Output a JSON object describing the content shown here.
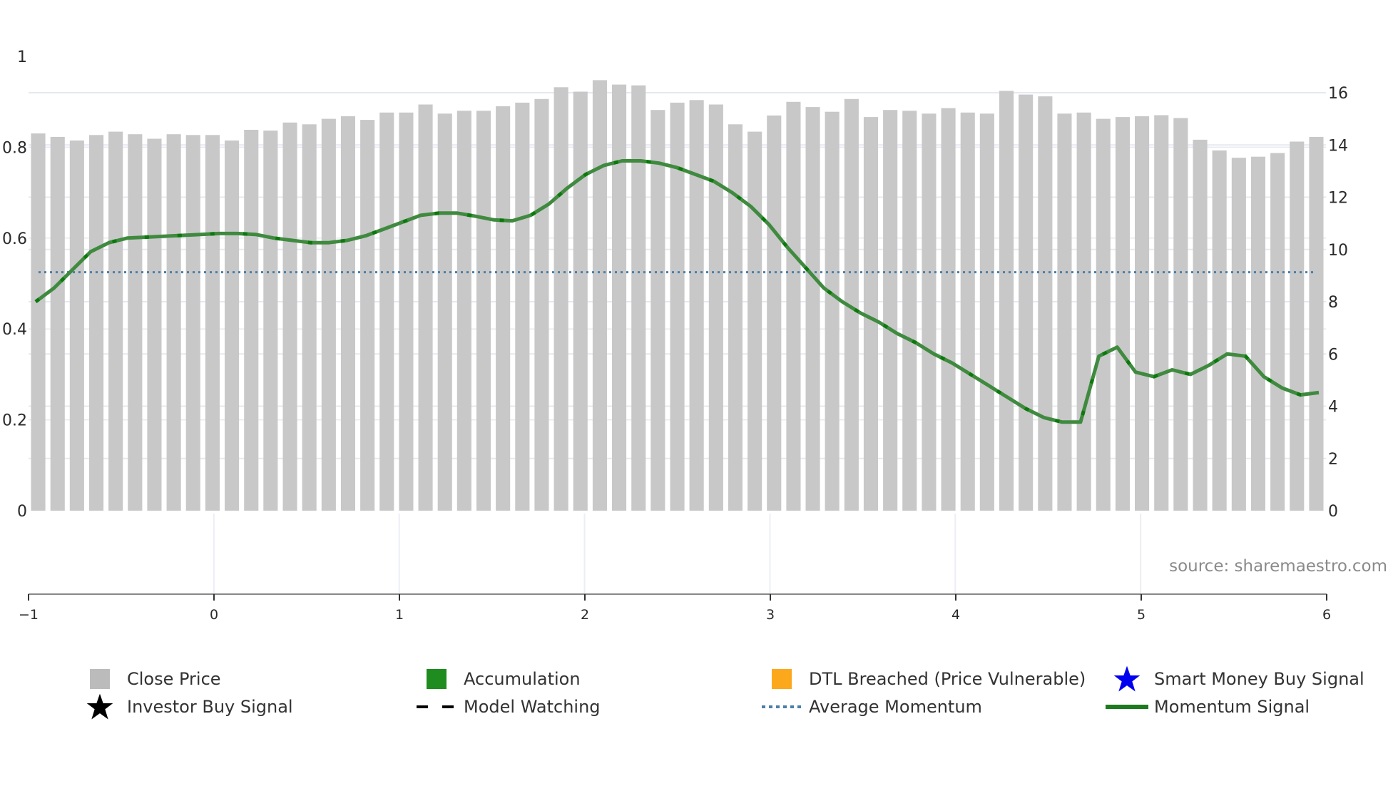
{
  "chart_data": {
    "type": "bar+line",
    "title": "",
    "source": "source: sharemaestro.com",
    "x_axis": {
      "ticks": [
        "−1",
        "0",
        "1",
        "2",
        "3",
        "4",
        "5",
        "6"
      ],
      "range": [
        -1,
        6
      ]
    },
    "y_left": {
      "ticks": [
        "0",
        "0.2",
        "0.4",
        "0.6",
        "0.8",
        "1"
      ],
      "range": [
        0,
        1
      ]
    },
    "y_right": {
      "ticks": [
        "0",
        "2",
        "4",
        "6",
        "8",
        "10",
        "12",
        "14",
        "16"
      ],
      "range": [
        0,
        17.4
      ]
    },
    "series": [
      {
        "name": "Close Price",
        "type": "bar",
        "axis": "right",
        "color": "#c8c8c8",
        "values": [
          14.44,
          14.31,
          14.17,
          14.38,
          14.51,
          14.41,
          14.24,
          14.41,
          14.38,
          14.38,
          14.17,
          14.58,
          14.55,
          14.86,
          14.79,
          15.0,
          15.1,
          14.96,
          15.24,
          15.24,
          15.55,
          15.2,
          15.31,
          15.31,
          15.48,
          15.62,
          15.76,
          16.21,
          16.04,
          16.48,
          16.31,
          16.28,
          15.34,
          15.62,
          15.72,
          15.55,
          14.79,
          14.51,
          15.13,
          15.65,
          15.45,
          15.27,
          15.76,
          15.07,
          15.34,
          15.31,
          15.2,
          15.41,
          15.24,
          15.2,
          16.07,
          15.93,
          15.86,
          15.2,
          15.24,
          15.0,
          15.07,
          15.1,
          15.14,
          15.03,
          14.2,
          13.79,
          13.51,
          13.55,
          13.69,
          14.13,
          14.31
        ]
      },
      {
        "name": "Momentum Signal",
        "type": "line",
        "axis": "left",
        "color": "#3a8a3a",
        "values": [
          0.46,
          0.49,
          0.53,
          0.57,
          0.59,
          0.6,
          0.602,
          0.604,
          0.606,
          0.608,
          0.61,
          0.61,
          0.608,
          0.6,
          0.595,
          0.59,
          0.59,
          0.595,
          0.605,
          0.62,
          0.635,
          0.65,
          0.655,
          0.655,
          0.648,
          0.64,
          0.638,
          0.65,
          0.675,
          0.71,
          0.74,
          0.76,
          0.77,
          0.77,
          0.765,
          0.755,
          0.74,
          0.725,
          0.7,
          0.67,
          0.63,
          0.58,
          0.535,
          0.49,
          0.46,
          0.435,
          0.415,
          0.39,
          0.37,
          0.345,
          0.325,
          0.3,
          0.275,
          0.25,
          0.225,
          0.205,
          0.195,
          0.195,
          0.34,
          0.36,
          0.305,
          0.295,
          0.31,
          0.3,
          0.32,
          0.345,
          0.34,
          0.295,
          0.27,
          0.255,
          0.26
        ]
      },
      {
        "name": "Average Momentum",
        "type": "line",
        "axis": "left",
        "style": "dotted",
        "color": "#4a7fa8",
        "value": 0.525
      }
    ],
    "legend": [
      {
        "label": "Close Price",
        "symbol": "square",
        "color": "#bbbbbb"
      },
      {
        "label": "Accumulation",
        "symbol": "square",
        "color": "#1e8c1e"
      },
      {
        "label": "DTL Breached (Price Vulnerable)",
        "symbol": "square",
        "color": "#fca81c"
      },
      {
        "label": "Smart Money Buy Signal",
        "symbol": "star",
        "color": "#0000ee"
      },
      {
        "label": "Investor Buy Signal",
        "symbol": "star",
        "color": "#000000"
      },
      {
        "label": "Model Watching",
        "symbol": "dash",
        "color": "#000000"
      },
      {
        "label": "Average Momentum",
        "symbol": "dot",
        "color": "#4a7fa8"
      },
      {
        "label": "Momentum Signal",
        "symbol": "line",
        "color": "#1e7a1e"
      }
    ]
  }
}
